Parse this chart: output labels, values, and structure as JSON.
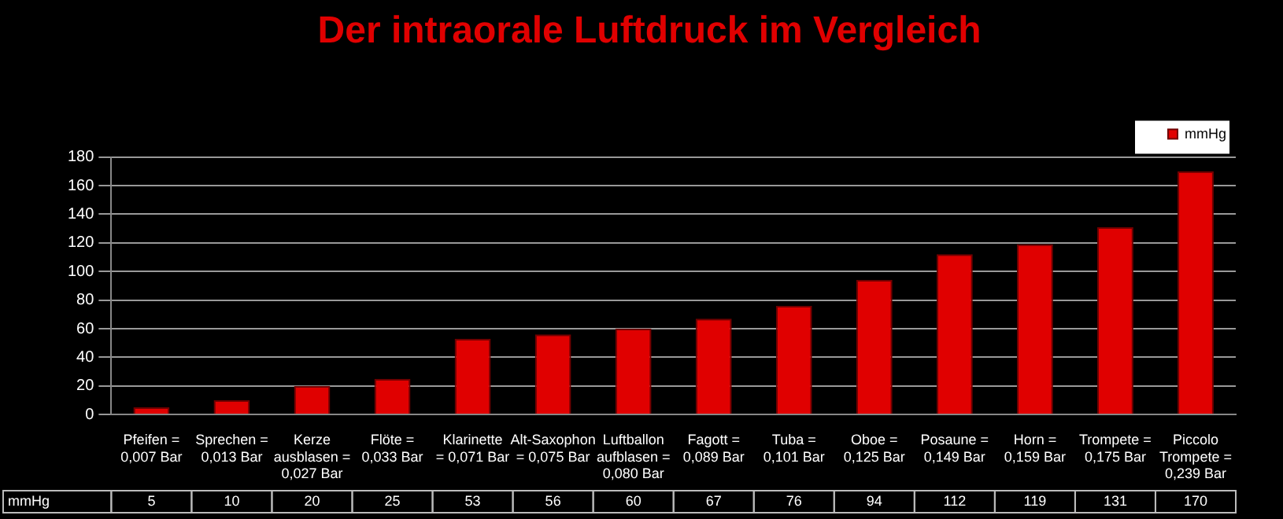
{
  "chart_data": {
    "type": "bar",
    "title": "Der intraorale Luftdruck im Vergleich",
    "categories": [
      "Pfeifen = 0,007 Bar",
      "Sprechen = 0,013 Bar",
      "Kerze ausblasen = 0,027 Bar",
      "Flöte = 0,033 Bar",
      "Klarinette = 0,071 Bar",
      "Alt-Saxophon = 0,075 Bar",
      "Luftballon aufblasen = 0,080 Bar",
      "Fagott = 0,089 Bar",
      "Tuba = 0,101 Bar",
      "Oboe = 0,125 Bar",
      "Posaune = 0,149 Bar",
      "Horn = 0,159 Bar",
      "Trompete = 0,175 Bar",
      "Piccolo Trompete = 0,239 Bar"
    ],
    "series": [
      {
        "name": "mmHg",
        "color": "#e00000",
        "values": [
          5,
          10,
          20,
          25,
          53,
          56,
          60,
          67,
          76,
          94,
          112,
          119,
          131,
          170
        ]
      }
    ],
    "ylim": [
      0,
      180
    ],
    "yticks": [
      0,
      20,
      40,
      60,
      80,
      100,
      120,
      140,
      160,
      180
    ],
    "grid": "y",
    "legend": "top right",
    "data_labels": true
  }
}
